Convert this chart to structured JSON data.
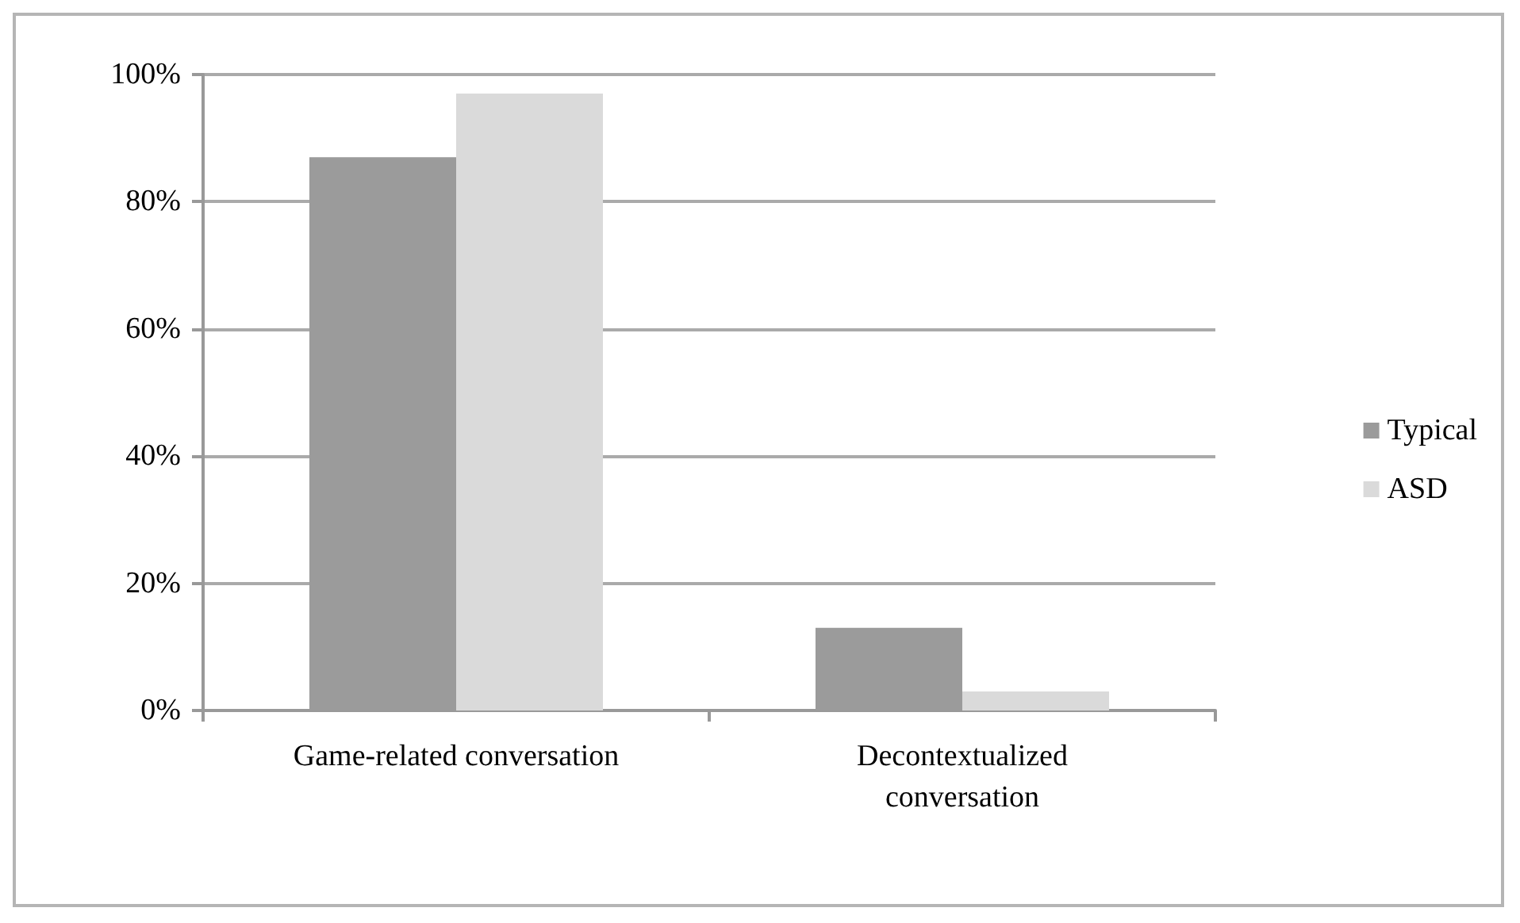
{
  "chart_data": {
    "type": "bar",
    "categories": [
      "Game-related conversation",
      "Decontextualized\nconversation"
    ],
    "series": [
      {
        "name": "Typical",
        "color": "#9b9b9b",
        "values": [
          87,
          13
        ]
      },
      {
        "name": "ASD",
        "color": "#dadada",
        "values": [
          97,
          3
        ]
      }
    ],
    "ylim": [
      0,
      100
    ],
    "yticks": [
      {
        "value": 0,
        "label": "0%"
      },
      {
        "value": 20,
        "label": "20%"
      },
      {
        "value": 40,
        "label": "40%"
      },
      {
        "value": 60,
        "label": "60%"
      },
      {
        "value": 80,
        "label": "80%"
      },
      {
        "value": 100,
        "label": "100%"
      }
    ],
    "grid": "y",
    "legend": "right"
  }
}
